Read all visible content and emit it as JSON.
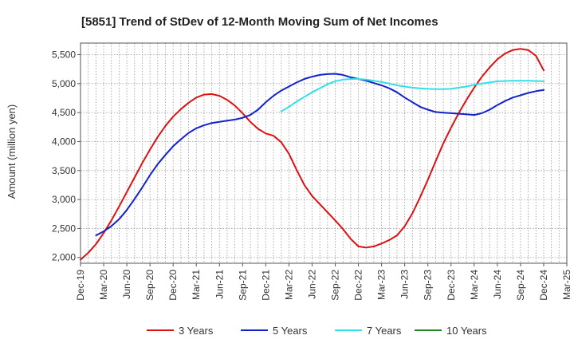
{
  "chart_data": {
    "type": "line",
    "title": "[5851]  Trend of StDev of 12-Month Moving Sum of Net Incomes",
    "ylabel": "Amount (million yen)",
    "xlabel": "",
    "ylim": [
      1900,
      5700
    ],
    "yticks": [
      2000,
      2500,
      3000,
      3500,
      4000,
      4500,
      5000,
      5500
    ],
    "ytick_labels": [
      "2,000",
      "2,500",
      "3,000",
      "3,500",
      "4,000",
      "4,500",
      "5,000",
      "5,500"
    ],
    "xticks": [
      "Dec-19",
      "Mar-20",
      "Jun-20",
      "Sep-20",
      "Dec-20",
      "Mar-21",
      "Jun-21",
      "Sep-21",
      "Dec-21",
      "Mar-22",
      "Jun-22",
      "Sep-22",
      "Dec-22",
      "Mar-23",
      "Jun-23",
      "Sep-23",
      "Dec-23",
      "Mar-24",
      "Jun-24",
      "Sep-24",
      "Dec-24",
      "Mar-25"
    ],
    "grid": true,
    "legend_position": "bottom",
    "series": [
      {
        "name": "3 Years",
        "color": "#dd1111",
        "points": [
          [
            "2019-12",
            1960
          ],
          [
            "2020-01",
            2080
          ],
          [
            "2020-02",
            2230
          ],
          [
            "2020-03",
            2420
          ],
          [
            "2020-04",
            2640
          ],
          [
            "2020-05",
            2880
          ],
          [
            "2020-06",
            3130
          ],
          [
            "2020-07",
            3380
          ],
          [
            "2020-08",
            3630
          ],
          [
            "2020-09",
            3860
          ],
          [
            "2020-10",
            4080
          ],
          [
            "2020-11",
            4270
          ],
          [
            "2020-12",
            4430
          ],
          [
            "2021-01",
            4560
          ],
          [
            "2021-02",
            4670
          ],
          [
            "2021-03",
            4760
          ],
          [
            "2021-04",
            4810
          ],
          [
            "2021-05",
            4820
          ],
          [
            "2021-06",
            4790
          ],
          [
            "2021-07",
            4720
          ],
          [
            "2021-08",
            4620
          ],
          [
            "2021-09",
            4490
          ],
          [
            "2021-10",
            4340
          ],
          [
            "2021-11",
            4220
          ],
          [
            "2021-12",
            4140
          ],
          [
            "2022-01",
            4100
          ],
          [
            "2022-02",
            3990
          ],
          [
            "2022-03",
            3790
          ],
          [
            "2022-04",
            3510
          ],
          [
            "2022-05",
            3250
          ],
          [
            "2022-06",
            3060
          ],
          [
            "2022-07",
            2920
          ],
          [
            "2022-08",
            2780
          ],
          [
            "2022-09",
            2640
          ],
          [
            "2022-10",
            2490
          ],
          [
            "2022-11",
            2320
          ],
          [
            "2022-12",
            2190
          ],
          [
            "2023-01",
            2170
          ],
          [
            "2023-02",
            2190
          ],
          [
            "2023-03",
            2240
          ],
          [
            "2023-04",
            2300
          ],
          [
            "2023-05",
            2380
          ],
          [
            "2023-06",
            2540
          ],
          [
            "2023-07",
            2760
          ],
          [
            "2023-08",
            3040
          ],
          [
            "2023-09",
            3340
          ],
          [
            "2023-10",
            3660
          ],
          [
            "2023-11",
            3970
          ],
          [
            "2023-12",
            4240
          ],
          [
            "2024-01",
            4490
          ],
          [
            "2024-02",
            4720
          ],
          [
            "2024-03",
            4930
          ],
          [
            "2024-04",
            5120
          ],
          [
            "2024-05",
            5280
          ],
          [
            "2024-06",
            5420
          ],
          [
            "2024-07",
            5520
          ],
          [
            "2024-08",
            5580
          ],
          [
            "2024-09",
            5600
          ],
          [
            "2024-10",
            5580
          ],
          [
            "2024-11",
            5480
          ],
          [
            "2024-12",
            5230
          ]
        ]
      },
      {
        "name": "5 Years",
        "color": "#1122cc",
        "points": [
          [
            "2020-02",
            2380
          ],
          [
            "2020-03",
            2450
          ],
          [
            "2020-04",
            2540
          ],
          [
            "2020-05",
            2660
          ],
          [
            "2020-06",
            2820
          ],
          [
            "2020-07",
            3010
          ],
          [
            "2020-08",
            3210
          ],
          [
            "2020-09",
            3420
          ],
          [
            "2020-10",
            3610
          ],
          [
            "2020-11",
            3770
          ],
          [
            "2020-12",
            3920
          ],
          [
            "2021-01",
            4040
          ],
          [
            "2021-02",
            4150
          ],
          [
            "2021-03",
            4230
          ],
          [
            "2021-04",
            4280
          ],
          [
            "2021-05",
            4320
          ],
          [
            "2021-06",
            4340
          ],
          [
            "2021-07",
            4360
          ],
          [
            "2021-08",
            4380
          ],
          [
            "2021-09",
            4410
          ],
          [
            "2021-10",
            4460
          ],
          [
            "2021-11",
            4550
          ],
          [
            "2021-12",
            4680
          ],
          [
            "2022-01",
            4790
          ],
          [
            "2022-02",
            4880
          ],
          [
            "2022-03",
            4950
          ],
          [
            "2022-04",
            5020
          ],
          [
            "2022-05",
            5080
          ],
          [
            "2022-06",
            5120
          ],
          [
            "2022-07",
            5150
          ],
          [
            "2022-08",
            5165
          ],
          [
            "2022-09",
            5170
          ],
          [
            "2022-10",
            5150
          ],
          [
            "2022-11",
            5110
          ],
          [
            "2022-12",
            5080
          ],
          [
            "2023-01",
            5050
          ],
          [
            "2023-02",
            5010
          ],
          [
            "2023-03",
            4970
          ],
          [
            "2023-04",
            4920
          ],
          [
            "2023-05",
            4850
          ],
          [
            "2023-06",
            4760
          ],
          [
            "2023-07",
            4680
          ],
          [
            "2023-08",
            4600
          ],
          [
            "2023-09",
            4550
          ],
          [
            "2023-10",
            4510
          ],
          [
            "2023-11",
            4500
          ],
          [
            "2023-12",
            4490
          ],
          [
            "2024-01",
            4480
          ],
          [
            "2024-02",
            4470
          ],
          [
            "2024-03",
            4460
          ],
          [
            "2024-04",
            4490
          ],
          [
            "2024-05",
            4550
          ],
          [
            "2024-06",
            4630
          ],
          [
            "2024-07",
            4700
          ],
          [
            "2024-08",
            4760
          ],
          [
            "2024-09",
            4800
          ],
          [
            "2024-10",
            4840
          ],
          [
            "2024-11",
            4870
          ],
          [
            "2024-12",
            4890
          ]
        ]
      },
      {
        "name": "7 Years",
        "color": "#33e0e8",
        "points": [
          [
            "2022-02",
            4520
          ],
          [
            "2022-03",
            4600
          ],
          [
            "2022-04",
            4690
          ],
          [
            "2022-05",
            4770
          ],
          [
            "2022-06",
            4850
          ],
          [
            "2022-07",
            4920
          ],
          [
            "2022-08",
            4990
          ],
          [
            "2022-09",
            5040
          ],
          [
            "2022-10",
            5070
          ],
          [
            "2022-11",
            5080
          ],
          [
            "2022-12",
            5080
          ],
          [
            "2023-01",
            5070
          ],
          [
            "2023-02",
            5050
          ],
          [
            "2023-03",
            5030
          ],
          [
            "2023-04",
            5000
          ],
          [
            "2023-05",
            4970
          ],
          [
            "2023-06",
            4950
          ],
          [
            "2023-07",
            4930
          ],
          [
            "2023-08",
            4920
          ],
          [
            "2023-09",
            4910
          ],
          [
            "2023-10",
            4905
          ],
          [
            "2023-11",
            4905
          ],
          [
            "2023-12",
            4910
          ],
          [
            "2024-01",
            4930
          ],
          [
            "2024-02",
            4950
          ],
          [
            "2024-03",
            4980
          ],
          [
            "2024-04",
            5000
          ],
          [
            "2024-05",
            5020
          ],
          [
            "2024-06",
            5040
          ],
          [
            "2024-07",
            5045
          ],
          [
            "2024-08",
            5050
          ],
          [
            "2024-09",
            5050
          ],
          [
            "2024-10",
            5050
          ],
          [
            "2024-11",
            5045
          ],
          [
            "2024-12",
            5040
          ]
        ]
      },
      {
        "name": "10 Years",
        "color": "#228822",
        "points": []
      }
    ]
  }
}
